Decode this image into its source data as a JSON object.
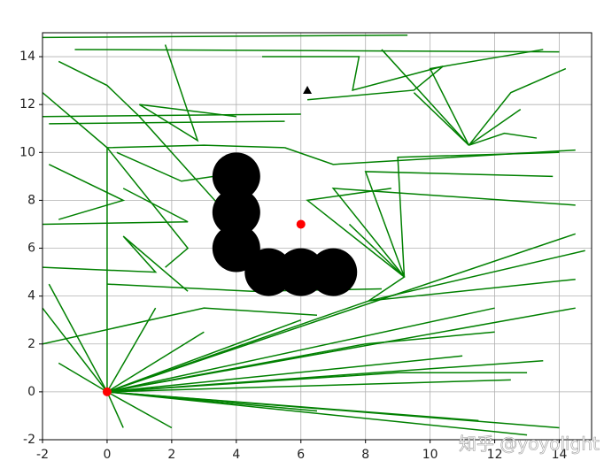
{
  "chart_data": {
    "type": "line",
    "xlim": [
      -2,
      15
    ],
    "ylim": [
      -2,
      15
    ],
    "xticks": [
      -2,
      0,
      2,
      4,
      6,
      8,
      10,
      12,
      14
    ],
    "yticks": [
      -2,
      0,
      2,
      4,
      6,
      8,
      10,
      12,
      14
    ],
    "grid": true,
    "watermark": "知乎 @yoyolight",
    "series": [
      {
        "marker": "none",
        "color": "#008000",
        "x": [
          0,
          14,
          null,
          0,
          13,
          null,
          0,
          12.5,
          null,
          0,
          11,
          null,
          0,
          13.5,
          null,
          0,
          12,
          null,
          0,
          14.5,
          null,
          0,
          14.5,
          null,
          0,
          6,
          null,
          0,
          3,
          null,
          0,
          1.5,
          null,
          0,
          2,
          null,
          0,
          -2,
          null,
          0,
          -1.8,
          null,
          0,
          0.5,
          null,
          0,
          -1.5,
          null,
          0,
          8.1,
          14.8,
          null,
          0,
          6.5,
          null,
          0,
          11.5,
          null,
          8.1,
          9.2,
          7.5,
          null,
          9.2,
          7,
          14.5,
          null,
          9.2,
          8,
          13.8,
          null,
          9.2,
          6.2,
          8.8,
          null,
          9.2,
          9,
          14,
          null,
          8.1,
          14.5,
          null,
          11.2,
          8.5,
          null,
          11.2,
          10,
          13.5,
          null,
          11.2,
          12.5,
          14.2,
          null,
          11.2,
          12.3,
          13.3,
          null,
          11.2,
          12.8,
          null,
          11.2,
          9.5,
          null,
          4.8,
          7.8,
          7.6,
          10.4,
          9.5,
          6.2,
          null,
          0,
          0,
          -2,
          null,
          0,
          3,
          5.5,
          null,
          -2,
          6,
          null,
          -1.8,
          5.5,
          null,
          1.8,
          2.8,
          1,
          4,
          null,
          -1.5,
          0,
          1,
          4,
          null,
          -2,
          2.5,
          0.5,
          null,
          -2,
          1.5,
          0.5,
          2.5,
          null,
          -1.8,
          0.5,
          -1.5,
          null,
          0,
          2.5,
          1.8,
          null,
          0.3,
          2.3,
          3.3,
          null,
          -2,
          9.3,
          null,
          -1,
          14,
          null,
          5.5,
          7,
          14.5,
          null,
          0,
          8,
          12,
          null,
          0,
          9,
          13,
          null,
          -2,
          3,
          6.5,
          null,
          0,
          4.5,
          8.5
        ],
        "values": [
          0,
          -1.5,
          null,
          0,
          -1.8,
          null,
          0,
          0.5,
          null,
          0,
          1.5,
          null,
          0,
          1.3,
          null,
          0,
          3.5,
          null,
          0,
          3.5,
          null,
          0,
          6.6,
          null,
          0,
          3,
          null,
          0,
          2.5,
          null,
          0,
          3.5,
          null,
          0,
          -1.5,
          null,
          0,
          3.5,
          null,
          0,
          4.5,
          null,
          0,
          -1.5,
          null,
          0,
          1.2,
          null,
          0,
          3.8,
          5.9,
          null,
          0,
          -0.8,
          null,
          0,
          -1.2,
          null,
          3.8,
          4.8,
          7,
          null,
          4.8,
          8.5,
          7.8,
          null,
          4.8,
          9.2,
          9,
          null,
          4.8,
          8,
          8.5,
          null,
          4.8,
          9.8,
          10,
          null,
          3.8,
          4.7,
          null,
          10.3,
          14.3,
          null,
          10.3,
          13.5,
          14.3,
          null,
          10.3,
          12.5,
          13.5,
          null,
          10.3,
          10.8,
          10.6,
          null,
          10.3,
          11.8,
          null,
          10.3,
          12.5,
          null,
          14,
          14,
          12.6,
          13.6,
          12.6,
          12.2,
          null,
          0,
          10.2,
          12.5,
          null,
          10.2,
          10.3,
          10.2,
          null,
          11.5,
          11.6,
          null,
          11.2,
          11.3,
          null,
          14.5,
          10.5,
          12,
          11.5,
          null,
          13.8,
          12.8,
          11.5,
          7,
          null,
          7,
          7.1,
          8.5,
          null,
          5.2,
          5,
          6.5,
          4.2,
          null,
          9.5,
          8,
          7.2,
          null,
          10.2,
          6,
          5.2,
          null,
          10,
          8.8,
          9,
          null,
          14.8,
          14.9,
          null,
          14.3,
          14.2,
          null,
          10.2,
          9.5,
          10.1,
          null,
          0,
          2,
          2.5,
          null,
          0,
          0.8,
          0.8,
          null,
          2,
          3.5,
          3.2,
          null,
          4.5,
          4.2,
          4.3
        ]
      },
      {
        "marker": "obstacle",
        "color": "#000000",
        "x": [
          4,
          4,
          4,
          5,
          6,
          7
        ],
        "values": [
          9,
          7.5,
          6,
          5,
          5,
          5
        ]
      },
      {
        "marker": "circle",
        "color": "#ff0000",
        "x": [
          0,
          6
        ],
        "values": [
          0,
          7
        ]
      },
      {
        "marker": "triangle",
        "color": "#000000",
        "x": [
          6.2
        ],
        "values": [
          12.6
        ]
      }
    ]
  }
}
